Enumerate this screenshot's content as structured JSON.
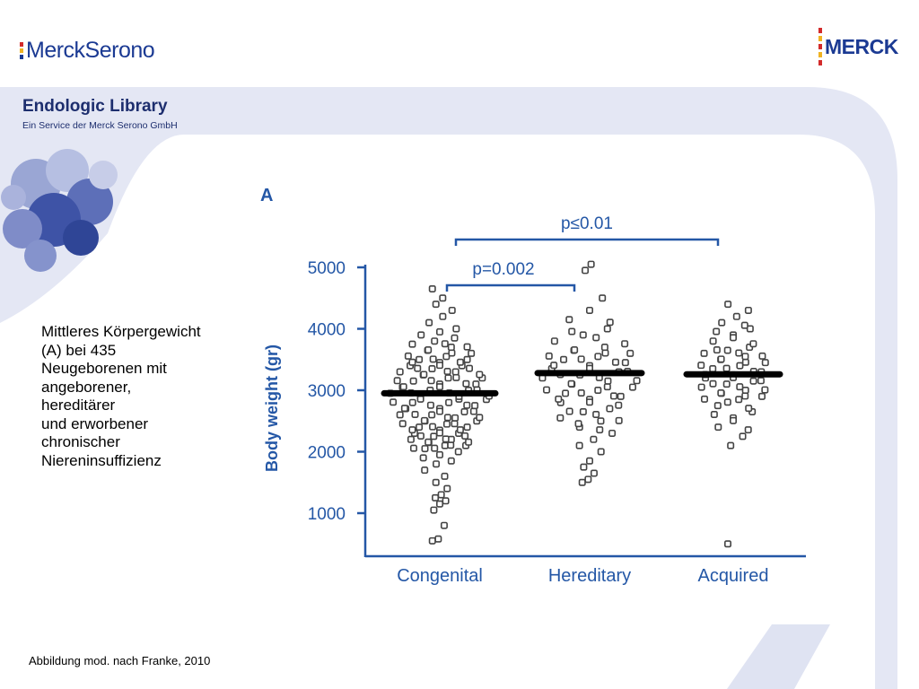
{
  "header": {
    "left_logo_text": "MerckSerono",
    "right_logo_text": "MERCK"
  },
  "band": {
    "title": "Endologic Library",
    "subtitle": "Ein Service der Merck Serono GmbH"
  },
  "description_lines": [
    "Mittleres Körpergewicht",
    "(A) bei 435",
    "Neugeborenen mit",
    "angeborener,",
    "hereditärer",
    "und erworbener",
    "chronischer",
    "Niereninsuffizienz"
  ],
  "footer": {
    "citation": "Abbildung mod. nach Franke, 2010"
  },
  "colors": {
    "brand_blue": "#1b3a93",
    "band_lavender": "#e4e7f4",
    "chart_blue": "#2457a6",
    "logo_red": "#d32b2b",
    "logo_yellow": "#f0b323"
  },
  "chart_data": {
    "type": "scatter",
    "panel_label": "A",
    "ylabel": "Body weight (gr)",
    "categories": [
      "Congenital",
      "Hereditary",
      "Acquired"
    ],
    "yticks": [
      1000,
      2000,
      3000,
      4000,
      5000
    ],
    "ylim": [
      300,
      5100
    ],
    "medians": [
      2950,
      3280,
      3260
    ],
    "significance": [
      {
        "label": "p=0.002",
        "from": "Congenital",
        "to": "Hereditary"
      },
      {
        "label": "p≤0.01",
        "from": "Congenital",
        "to": "Acquired"
      }
    ],
    "series": [
      {
        "category": "Congenital",
        "values": [
          550,
          580,
          800,
          1050,
          1150,
          1200,
          1250,
          1300,
          1400,
          1500,
          1600,
          1700,
          1800,
          1850,
          1900,
          1950,
          2000,
          2050,
          2100,
          2100,
          2150,
          2200,
          2200,
          2250,
          2300,
          2300,
          2350,
          2400,
          2400,
          2450,
          2500,
          2500,
          2550,
          2600,
          2600,
          2650,
          2700,
          2700,
          2750,
          2800,
          2800,
          2850,
          2900,
          2900,
          2950,
          3000,
          3000,
          3050,
          3100,
          3100,
          3150,
          3200,
          3200,
          3250,
          3300,
          3300,
          3350,
          3400,
          3400,
          3450,
          3500,
          3500,
          3550,
          3600,
          3650,
          3700,
          3750,
          3800,
          3850,
          3900,
          3950,
          4000,
          4100,
          4200,
          4300,
          4400,
          4500,
          4650
        ]
      },
      {
        "category": "Hereditary",
        "values": [
          1500,
          1550,
          1650,
          1750,
          1850,
          2000,
          2100,
          2200,
          2300,
          2400,
          2500,
          2550,
          2650,
          2700,
          2800,
          2850,
          2900,
          2950,
          3000,
          3050,
          3100,
          3150,
          3200,
          3250,
          3300,
          3350,
          3400,
          3450,
          3500,
          3550,
          3600,
          3650,
          3700,
          3800,
          3900,
          4000,
          4150,
          4300,
          4500,
          4950,
          5050
        ]
      },
      {
        "category": "Acquired",
        "values": [
          500,
          2100,
          2250,
          2400,
          2550,
          2650,
          2750,
          2850,
          2900,
          2950,
          3000,
          3050,
          3100,
          3150,
          3200,
          3250,
          3300,
          3350,
          3400,
          3450,
          3500,
          3550,
          3600,
          3650,
          3700,
          3800,
          3900,
          4000,
          4100,
          4200,
          4300,
          4400
        ]
      }
    ]
  }
}
